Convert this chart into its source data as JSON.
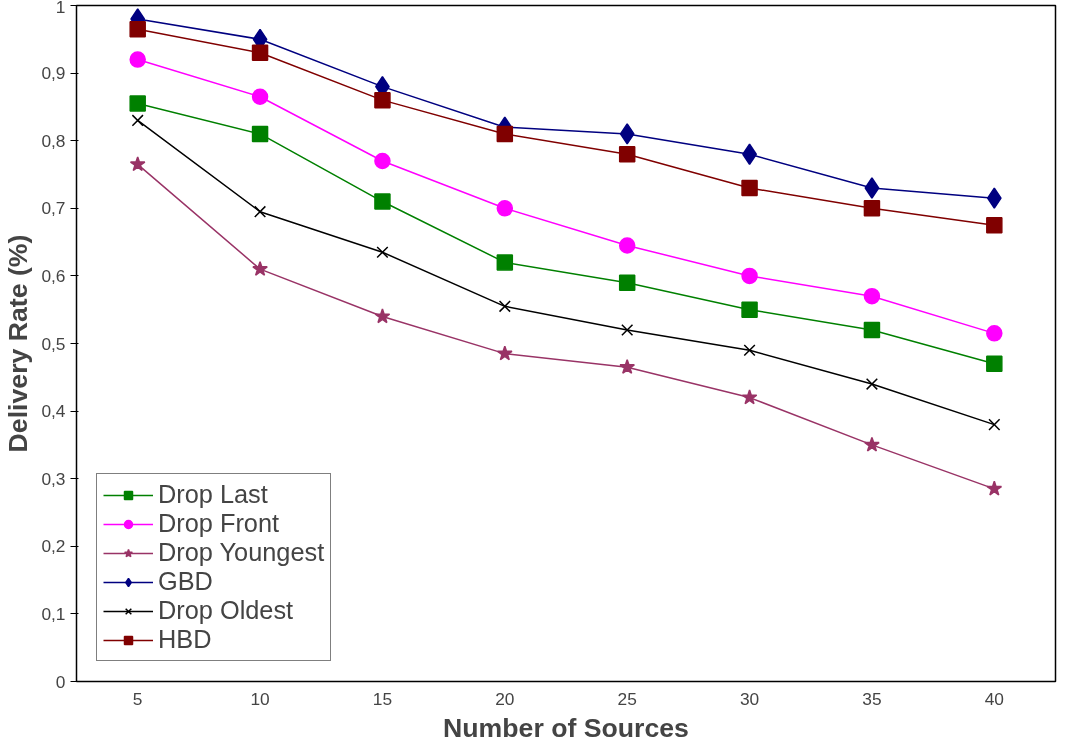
{
  "chart_data": {
    "type": "line",
    "xlabel": "Number of Sources",
    "ylabel": "Delivery Rate (%)",
    "categories": [
      "5",
      "10",
      "15",
      "20",
      "25",
      "30",
      "35",
      "40"
    ],
    "ylim": [
      0,
      1
    ],
    "yticks": [
      0,
      {
        "value": 0.1,
        "label": "0,1"
      },
      {
        "value": 0.2,
        "label": "0,2"
      },
      {
        "value": 0.3,
        "label": "0,3"
      },
      {
        "value": 0.4,
        "label": "0,4"
      },
      {
        "value": 0.5,
        "label": "0,5"
      },
      {
        "value": 0.6,
        "label": "0,6"
      },
      {
        "value": 0.7,
        "label": "0,7"
      },
      {
        "value": 0.8,
        "label": "0,8"
      },
      {
        "value": 0.9,
        "label": "0,9"
      },
      1
    ],
    "grid": false,
    "legend": "bottom left",
    "series": [
      {
        "name": "Drop Last",
        "color": "#008000",
        "marker": "square",
        "values": [
          0.855,
          0.81,
          0.71,
          0.62,
          0.59,
          0.55,
          0.52,
          0.47
        ]
      },
      {
        "name": "Drop Front",
        "color": "#ff00ff",
        "marker": "circle",
        "values": [
          0.92,
          0.865,
          0.77,
          0.7,
          0.645,
          0.6,
          0.57,
          0.515
        ]
      },
      {
        "name": "Drop Youngest",
        "color": "#993366",
        "marker": "star",
        "values": [
          0.765,
          0.61,
          0.54,
          0.485,
          0.465,
          0.42,
          0.35,
          0.285
        ]
      },
      {
        "name": "GBD",
        "color": "#000080",
        "marker": "diamond",
        "values": [
          0.98,
          0.95,
          0.88,
          0.82,
          0.81,
          0.78,
          0.73,
          0.715
        ]
      },
      {
        "name": "Drop Oldest",
        "color": "#000000",
        "marker": "cross",
        "values": [
          0.83,
          0.695,
          0.635,
          0.555,
          0.52,
          0.49,
          0.44,
          0.38
        ]
      },
      {
        "name": "HBD",
        "color": "#800000",
        "marker": "square",
        "values": [
          0.965,
          0.93,
          0.86,
          0.81,
          0.78,
          0.73,
          0.7,
          0.675
        ]
      }
    ]
  }
}
